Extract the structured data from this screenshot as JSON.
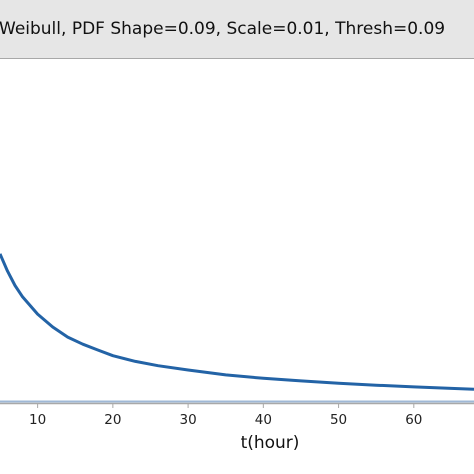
{
  "chart_data": {
    "type": "line",
    "title": "Weibull, PDF Shape=0.09, Scale=0.01, Thresh=0.09",
    "xlabel": "t(hour)",
    "ylabel": "",
    "xlim": [
      5,
      68
    ],
    "ylim": [
      0,
      0.12
    ],
    "xticks": [
      10,
      20,
      30,
      40,
      50,
      60
    ],
    "grid": false,
    "legend": "none",
    "series": [
      {
        "values_x": [
          5,
          6,
          7,
          8,
          9,
          10,
          12,
          14,
          16,
          18,
          20,
          23,
          26,
          30,
          35,
          40,
          45,
          50,
          55,
          60,
          65,
          68
        ],
        "values_y": [
          0.052,
          0.046,
          0.041,
          0.037,
          0.034,
          0.031,
          0.0265,
          0.023,
          0.0205,
          0.0185,
          0.0165,
          0.0145,
          0.013,
          0.0115,
          0.0098,
          0.0086,
          0.0077,
          0.0069,
          0.0062,
          0.0056,
          0.0051,
          0.0048
        ],
        "color": "#2363a6"
      }
    ],
    "baseline_color": "#9fb8d6",
    "axis_color": "#a8a8a8"
  }
}
